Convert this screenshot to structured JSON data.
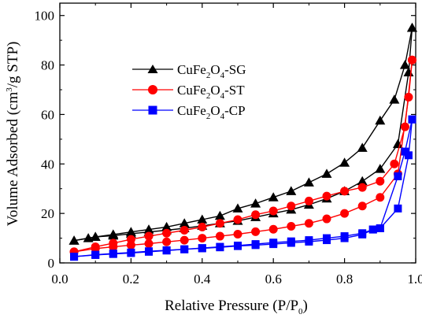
{
  "chart_data": {
    "type": "line",
    "title": "",
    "xlabel": {
      "main": "Relative Pressure (P/P",
      "sub": "0",
      "tail": ")"
    },
    "ylabel": {
      "main": "Volume Adsorbed (cm",
      "sup": "3",
      "tail": "/g STP)"
    },
    "xlim": [
      0.0,
      1.0
    ],
    "ylim": [
      0,
      105
    ],
    "xticks": [
      "0.0",
      "0.2",
      "0.4",
      "0.6",
      "0.8",
      "1.0"
    ],
    "xtick_values": [
      0.0,
      0.2,
      0.4,
      0.6,
      0.8,
      1.0
    ],
    "yticks": [
      "0",
      "20",
      "40",
      "60",
      "80",
      "100"
    ],
    "ytick_values": [
      0,
      20,
      40,
      60,
      80,
      100
    ],
    "grid": false,
    "legend_position": "top-left",
    "series": [
      {
        "name": "CuFe2O4-SG",
        "legend": {
          "a": "CuFe",
          "s1": "2",
          "b": "O",
          "s2": "4",
          "c": "-SG"
        },
        "marker": "triangle",
        "color": "#000000",
        "adsorption": {
          "x": [
            0.04,
            0.08,
            0.1,
            0.15,
            0.2,
            0.25,
            0.3,
            0.35,
            0.4,
            0.45,
            0.5,
            0.55,
            0.6,
            0.65,
            0.7,
            0.75,
            0.8,
            0.85,
            0.9,
            0.95,
            0.98,
            0.99
          ],
          "y": [
            9.0,
            10.0,
            10.5,
            11.0,
            11.8,
            12.5,
            13.2,
            14.0,
            15.0,
            16.0,
            17.0,
            18.5,
            20.0,
            21.5,
            23.5,
            26.0,
            29.0,
            33.0,
            38.0,
            48.0,
            77.0,
            95.0
          ]
        },
        "desorption": {
          "x": [
            0.99,
            0.97,
            0.94,
            0.9,
            0.85,
            0.8,
            0.75,
            0.7,
            0.65,
            0.6,
            0.55,
            0.5,
            0.45,
            0.4,
            0.35,
            0.3,
            0.25,
            0.2,
            0.15,
            0.1,
            0.04
          ],
          "y": [
            95.0,
            80.0,
            66.0,
            57.5,
            46.5,
            40.5,
            36.0,
            32.5,
            29.0,
            26.5,
            24.0,
            22.0,
            19.0,
            17.5,
            16.0,
            14.5,
            13.5,
            12.5,
            11.5,
            10.5,
            9.0
          ]
        }
      },
      {
        "name": "CuFe2O4-ST",
        "legend": {
          "a": "CuFe",
          "s1": "2",
          "b": "O",
          "s2": "4",
          "c": "-ST"
        },
        "marker": "circle",
        "color": "#ff0000",
        "adsorption": {
          "x": [
            0.04,
            0.1,
            0.15,
            0.2,
            0.25,
            0.3,
            0.35,
            0.4,
            0.45,
            0.5,
            0.55,
            0.6,
            0.65,
            0.7,
            0.75,
            0.8,
            0.85,
            0.9,
            0.95,
            0.98,
            0.99
          ],
          "y": [
            4.5,
            5.8,
            6.5,
            7.2,
            7.8,
            8.5,
            9.2,
            10.0,
            10.8,
            11.6,
            12.6,
            13.6,
            14.8,
            16.0,
            17.8,
            20.0,
            23.0,
            26.5,
            36.0,
            67.0,
            82.0
          ]
        },
        "desorption": {
          "x": [
            0.99,
            0.97,
            0.94,
            0.9,
            0.85,
            0.8,
            0.75,
            0.7,
            0.65,
            0.6,
            0.55,
            0.5,
            0.45,
            0.4,
            0.35,
            0.3,
            0.25,
            0.2,
            0.15,
            0.1,
            0.04
          ],
          "y": [
            82.0,
            55.0,
            40.0,
            33.0,
            30.5,
            29.0,
            27.0,
            25.0,
            23.0,
            21.0,
            19.5,
            17.5,
            16.0,
            14.5,
            13.2,
            12.0,
            10.8,
            9.5,
            8.0,
            6.5,
            4.5
          ]
        }
      },
      {
        "name": "CuFe2O4-CP",
        "legend": {
          "a": "CuFe",
          "s1": "2",
          "b": "O",
          "s2": "4",
          "c": "-CP"
        },
        "marker": "square",
        "color": "#0000ff",
        "adsorption": {
          "x": [
            0.04,
            0.1,
            0.15,
            0.2,
            0.25,
            0.3,
            0.35,
            0.4,
            0.45,
            0.5,
            0.55,
            0.6,
            0.65,
            0.7,
            0.75,
            0.8,
            0.85,
            0.88,
            0.9,
            0.95,
            0.98,
            0.99
          ],
          "y": [
            2.5,
            3.2,
            3.6,
            4.0,
            4.5,
            5.0,
            5.5,
            5.9,
            6.3,
            6.8,
            7.2,
            7.6,
            8.1,
            8.6,
            9.2,
            10.0,
            11.5,
            13.5,
            14.0,
            22.0,
            43.5,
            58.0
          ]
        },
        "desorption": {
          "x": [
            0.99,
            0.97,
            0.95,
            0.9,
            0.88,
            0.85,
            0.8,
            0.75,
            0.7,
            0.65,
            0.6,
            0.55,
            0.5,
            0.45,
            0.4,
            0.35,
            0.3,
            0.25,
            0.2,
            0.15,
            0.1,
            0.04
          ],
          "y": [
            58.0,
            45.0,
            35.0,
            14.0,
            13.5,
            12.0,
            10.8,
            10.0,
            9.2,
            8.7,
            8.2,
            7.6,
            7.0,
            6.5,
            6.0,
            5.5,
            5.1,
            4.7,
            4.2,
            3.8,
            3.3,
            2.5
          ]
        }
      }
    ]
  }
}
